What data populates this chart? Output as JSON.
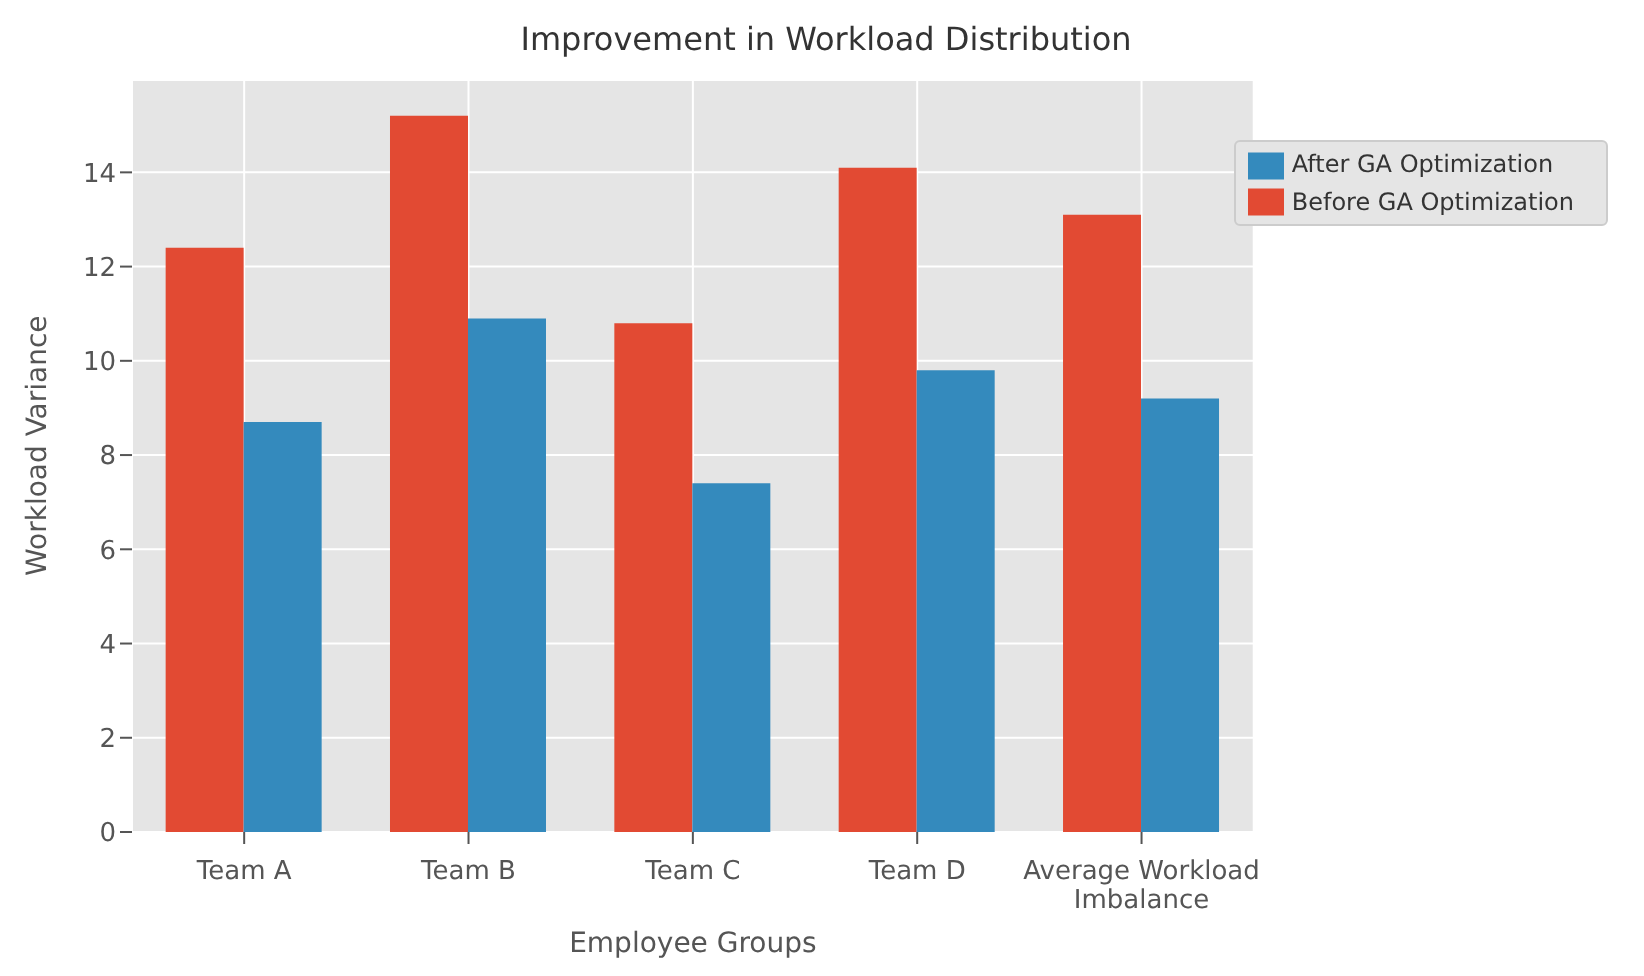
{
  "chart_data": {
    "type": "bar",
    "title": "Improvement in Workload Distribution",
    "xlabel": "Employee Groups",
    "ylabel": "Workload Variance",
    "categories": [
      "Team A",
      "Team B",
      "Team C",
      "Team D",
      "Average Workload Imbalance"
    ],
    "series": [
      {
        "name": "Before GA Optimization",
        "color": "#e24a33",
        "values": [
          12.4,
          15.2,
          10.8,
          14.1,
          13.1
        ]
      },
      {
        "name": "After GA Optimization",
        "color": "#348abd",
        "values": [
          8.7,
          10.9,
          7.4,
          9.8,
          9.2
        ]
      }
    ],
    "ylim": [
      0,
      15.96
    ],
    "yticks": [
      0,
      2,
      4,
      6,
      8,
      10,
      12,
      14
    ],
    "grid": true,
    "legend": "top right"
  }
}
